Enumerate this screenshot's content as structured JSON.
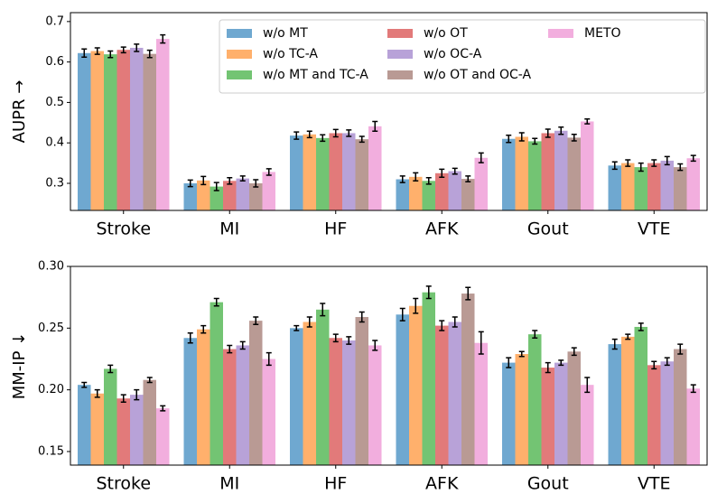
{
  "chart_data": [
    {
      "type": "bar",
      "ylabel": "AUPR →",
      "legend": "upper right",
      "categories": [
        "Stroke",
        "MI",
        "HF",
        "AFK",
        "Gout",
        "VTE"
      ],
      "ylim": [
        0.233,
        0.722
      ],
      "yticks": [
        0.3,
        0.4,
        0.5,
        0.6,
        0.7
      ],
      "series": [
        {
          "name": "w/o MT",
          "color": "#6fa8d0",
          "values": [
            0.622,
            0.3,
            0.418,
            0.31,
            0.41,
            0.344
          ],
          "errors": [
            0.01,
            0.008,
            0.009,
            0.008,
            0.009,
            0.009
          ]
        },
        {
          "name": "w/o TC-A",
          "color": "#ffb06c",
          "values": [
            0.627,
            0.307,
            0.421,
            0.316,
            0.415,
            0.35
          ],
          "errors": [
            0.008,
            0.01,
            0.008,
            0.01,
            0.01,
            0.008
          ]
        },
        {
          "name": "w/o MT and TC-A",
          "color": "#73c473",
          "values": [
            0.619,
            0.292,
            0.412,
            0.306,
            0.404,
            0.34
          ],
          "errors": [
            0.008,
            0.01,
            0.008,
            0.008,
            0.007,
            0.01
          ]
        },
        {
          "name": "w/o OT",
          "color": "#e27a7a",
          "values": [
            0.63,
            0.306,
            0.424,
            0.325,
            0.424,
            0.35
          ],
          "errors": [
            0.007,
            0.008,
            0.009,
            0.01,
            0.01,
            0.008
          ]
        },
        {
          "name": "w/o OC-A",
          "color": "#b8a2d8",
          "values": [
            0.635,
            0.312,
            0.424,
            0.33,
            0.43,
            0.356
          ],
          "errors": [
            0.009,
            0.006,
            0.008,
            0.007,
            0.009,
            0.01
          ]
        },
        {
          "name": "w/o OT and OC-A",
          "color": "#b99a94",
          "values": [
            0.62,
            0.3,
            0.409,
            0.311,
            0.413,
            0.34
          ],
          "errors": [
            0.009,
            0.009,
            0.007,
            0.007,
            0.008,
            0.008
          ]
        },
        {
          "name": "METO",
          "color": "#f2aede",
          "values": [
            0.657,
            0.328,
            0.441,
            0.363,
            0.453,
            0.362
          ],
          "errors": [
            0.01,
            0.008,
            0.012,
            0.012,
            0.006,
            0.007
          ]
        }
      ]
    },
    {
      "type": "bar",
      "ylabel": "MM-IP ↓",
      "categories": [
        "Stroke",
        "MI",
        "HF",
        "AFK",
        "Gout",
        "VTE"
      ],
      "ylim": [
        0.139,
        0.3
      ],
      "yticks": [
        0.15,
        {
          "value": 0.2,
          "label": "0.20"
        },
        0.25,
        {
          "value": 0.3,
          "label": "0.30"
        }
      ],
      "series": [
        {
          "color": "#6fa8d0",
          "values": [
            0.204,
            0.242,
            0.25,
            0.261,
            0.222,
            0.237
          ],
          "errors": [
            0.002,
            0.004,
            0.002,
            0.005,
            0.004,
            0.004
          ]
        },
        {
          "color": "#ffb06c",
          "values": [
            0.197,
            0.249,
            0.255,
            0.268,
            0.229,
            0.243
          ],
          "errors": [
            0.003,
            0.003,
            0.004,
            0.006,
            0.002,
            0.002
          ]
        },
        {
          "color": "#73c473",
          "values": [
            0.217,
            0.271,
            0.265,
            0.279,
            0.245,
            0.251
          ],
          "errors": [
            0.003,
            0.003,
            0.005,
            0.005,
            0.003,
            0.003
          ]
        },
        {
          "color": "#e27a7a",
          "values": [
            0.193,
            0.233,
            0.242,
            0.252,
            0.218,
            0.22
          ],
          "errors": [
            0.003,
            0.003,
            0.003,
            0.004,
            0.004,
            0.003
          ]
        },
        {
          "color": "#b8a2d8",
          "values": [
            0.196,
            0.236,
            0.24,
            0.255,
            0.222,
            0.223
          ],
          "errors": [
            0.004,
            0.003,
            0.003,
            0.004,
            0.002,
            0.003
          ]
        },
        {
          "color": "#b99a94",
          "values": [
            0.208,
            0.256,
            0.259,
            0.278,
            0.231,
            0.233
          ],
          "errors": [
            0.002,
            0.003,
            0.004,
            0.005,
            0.003,
            0.004
          ]
        },
        {
          "color": "#f2aede",
          "values": [
            0.185,
            0.225,
            0.236,
            0.238,
            0.204,
            0.201
          ],
          "errors": [
            0.002,
            0.005,
            0.004,
            0.009,
            0.006,
            0.003
          ]
        }
      ]
    }
  ]
}
